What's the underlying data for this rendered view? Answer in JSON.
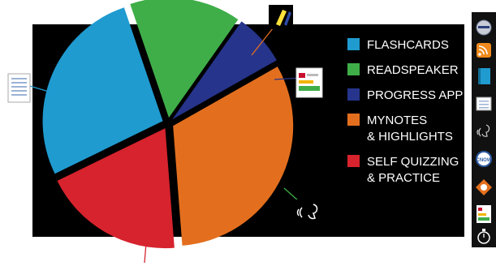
{
  "chart_data": {
    "type": "pie",
    "title": "",
    "slices": [
      {
        "label_lines": [
          "FLASHCARDS"
        ],
        "value": 27,
        "color": "#1f9bd0",
        "icon": "flashcards-icon"
      },
      {
        "label_lines": [
          "READSPEAKER"
        ],
        "value": 15,
        "color": "#3fae49",
        "icon": "readspeaker-icon"
      },
      {
        "label_lines": [
          "PROGRESS APP"
        ],
        "value": 7,
        "color": "#26348b",
        "icon": "progress-app-icon"
      },
      {
        "label_lines": [
          "MYNOTES",
          "& HIGHLIGHTS"
        ],
        "value": 32,
        "color": "#e36f1e",
        "icon": "mynotes-highlights-icon"
      },
      {
        "label_lines": [
          "SELF QUIZZING",
          "& PRACTICE"
        ],
        "value": 19,
        "color": "#d6232d",
        "icon": "self-quizzing-icon"
      }
    ],
    "legend_position": "right"
  },
  "colors": {
    "panel_background": "#000000",
    "page_background": "#ffffff"
  },
  "app_dock": {
    "icons": [
      "mindtap-badge-icon",
      "rss-feed-icon",
      "book-icon",
      "flashcards-icon",
      "readspeaker-icon",
      "cnow-icon",
      "compass-icon",
      "progress-app-icon",
      "stopwatch-icon"
    ]
  }
}
